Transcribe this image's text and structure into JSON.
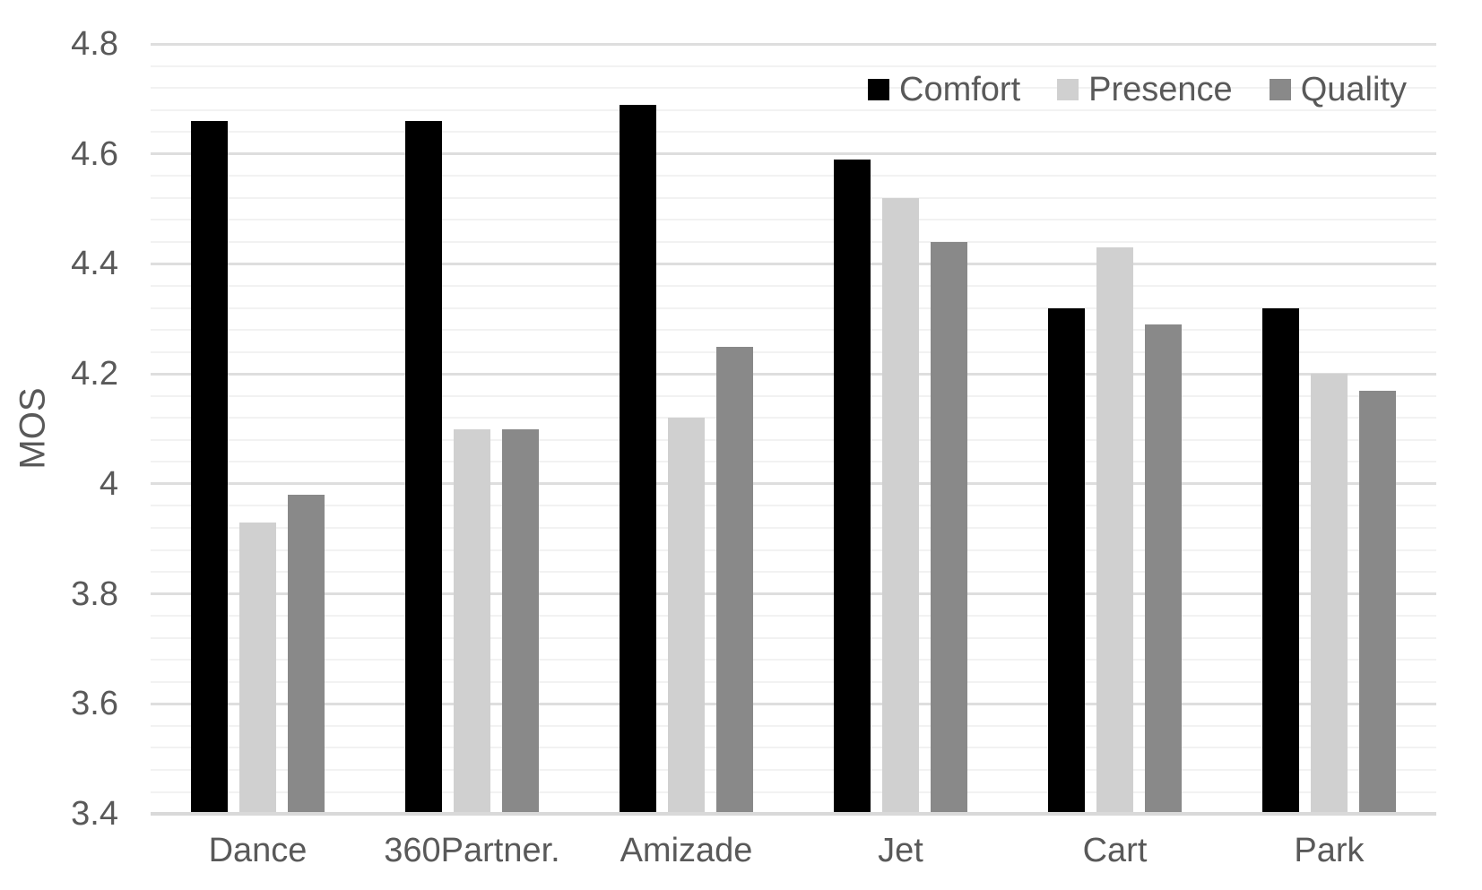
{
  "chart_data": {
    "type": "bar",
    "title": "",
    "xlabel": "",
    "ylabel": "MOS",
    "categories": [
      "Dance",
      "360Partner.",
      "Amizade",
      "Jet",
      "Cart",
      "Park"
    ],
    "series": [
      {
        "name": "Comfort",
        "color": "#000000",
        "values": [
          4.66,
          4.66,
          4.69,
          4.59,
          4.32,
          4.32
        ]
      },
      {
        "name": "Presence",
        "color": "#d0d0d0",
        "values": [
          3.93,
          4.1,
          4.12,
          4.52,
          4.43,
          4.2
        ]
      },
      {
        "name": "Quality",
        "color": "#898989",
        "values": [
          3.98,
          4.1,
          4.25,
          4.44,
          4.29,
          4.17
        ]
      }
    ],
    "ylim": [
      3.4,
      4.8
    ],
    "y_major_step": 0.2,
    "y_minor_step": 0.04,
    "y_ticks": [
      {
        "value": 4.8,
        "label": "4.8"
      },
      {
        "value": 4.6,
        "label": "4.6"
      },
      {
        "value": 4.4,
        "label": "4.4"
      },
      {
        "value": 4.2,
        "label": "4.2"
      },
      {
        "value": 4.0,
        "label": "4"
      },
      {
        "value": 3.8,
        "label": "3.8"
      },
      {
        "value": 3.6,
        "label": "3.6"
      },
      {
        "value": 3.4,
        "label": "3.4"
      }
    ],
    "grid": "horizontal major+minor",
    "legend_position": "top-right",
    "colors": {
      "background": "#ffffff",
      "text": "#595959",
      "major_gridline": "#dedede",
      "minor_gridline": "#f2f2f2",
      "axis_line": "#d9d9d9"
    }
  }
}
